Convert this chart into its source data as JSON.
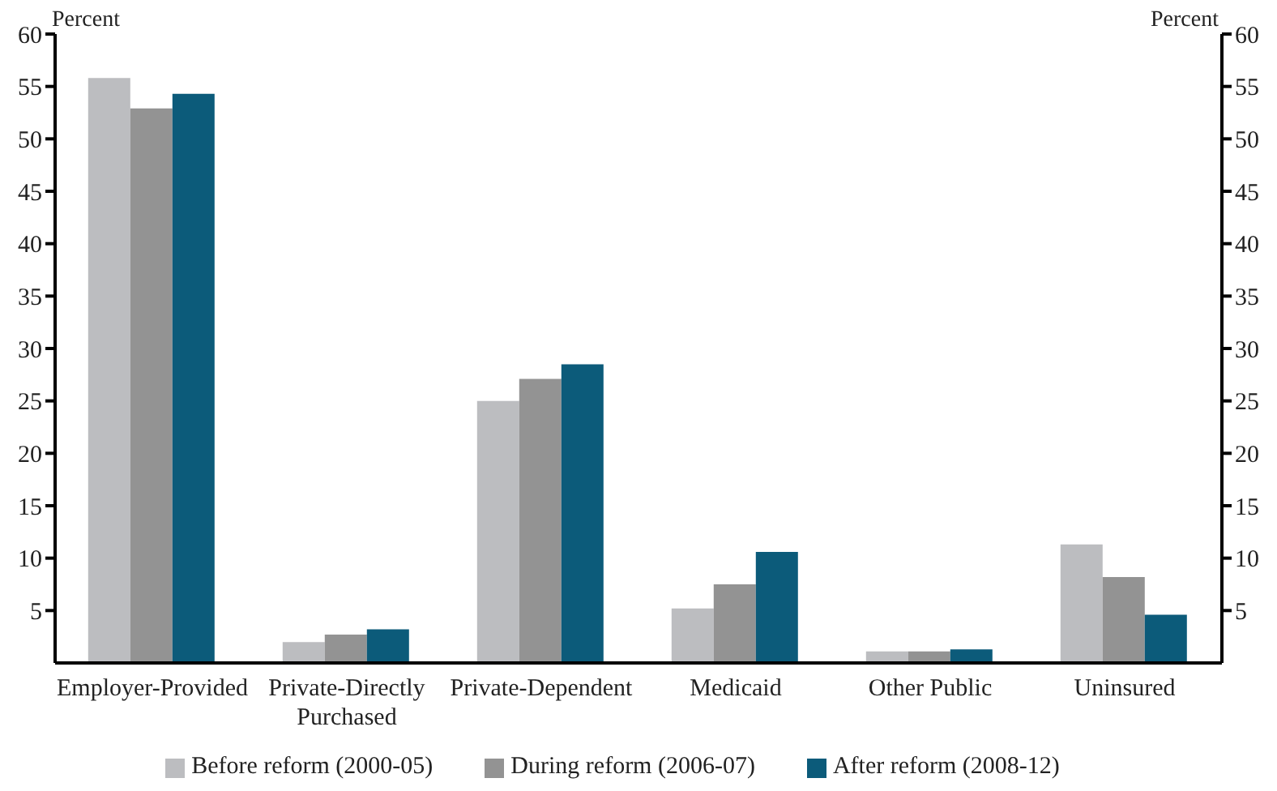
{
  "chart_data": {
    "type": "bar",
    "ylabel": "Percent",
    "y2label": "Percent",
    "categories": [
      "Employer-Provided",
      "Private-Directly Purchased",
      "Private-Dependent",
      "Medicaid",
      "Other Public",
      "Uninsured"
    ],
    "series": [
      {
        "name": "Before reform (2000-05)",
        "color": "#bcbdc0",
        "values": [
          55.8,
          2.0,
          25.0,
          5.2,
          1.1,
          11.3
        ]
      },
      {
        "name": "During reform (2006-07)",
        "color": "#939393",
        "values": [
          52.9,
          2.7,
          27.1,
          7.5,
          1.1,
          8.2
        ]
      },
      {
        "name": "After reform (2008-12)",
        "color": "#0c5b7a",
        "values": [
          54.3,
          3.2,
          28.5,
          10.6,
          1.3,
          4.6
        ]
      }
    ],
    "ylim": [
      0,
      60
    ],
    "yticks": [
      5,
      10,
      15,
      20,
      25,
      30,
      35,
      40,
      45,
      50,
      55,
      60
    ],
    "y2lim": [
      0,
      60
    ],
    "y2ticks": [
      5,
      10,
      15,
      20,
      25,
      30,
      35,
      40,
      45,
      50,
      55,
      60
    ],
    "grid": false,
    "legend": "bottom"
  }
}
